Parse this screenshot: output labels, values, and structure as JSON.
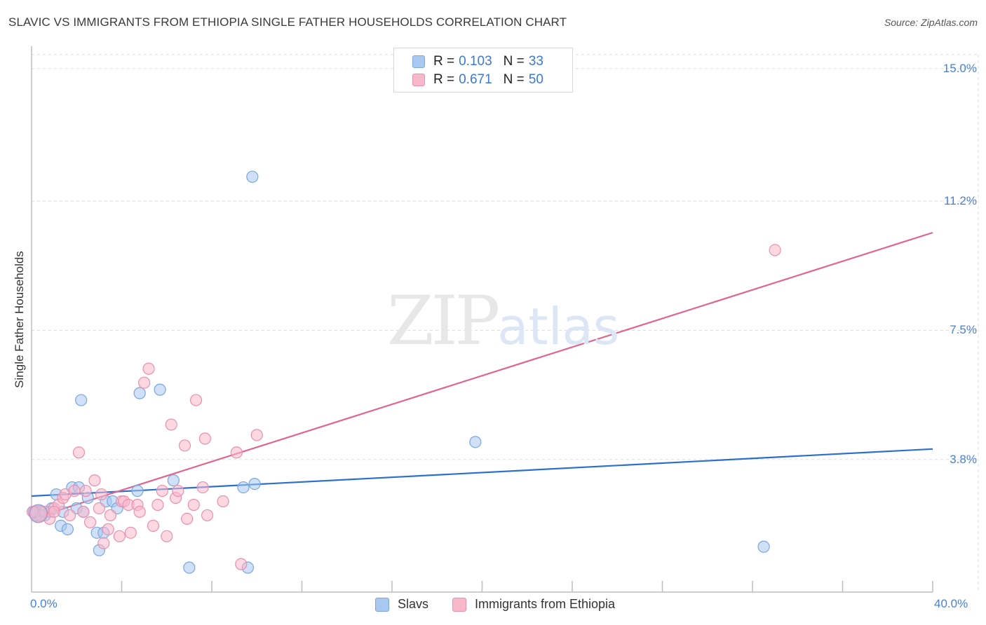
{
  "header": {
    "title": "SLAVIC VS IMMIGRANTS FROM ETHIOPIA SINGLE FATHER HOUSEHOLDS CORRELATION CHART",
    "source": "Source: ZipAtlas.com"
  },
  "watermark": {
    "zip": "ZIP",
    "atlas": "atlas"
  },
  "legend": {
    "rows": [
      {
        "r_label": "R =",
        "r_value": "0.103",
        "n_label": "N =",
        "n_value": "33"
      },
      {
        "r_label": "R =",
        "r_value": "0.671",
        "n_label": "N =",
        "n_value": "50"
      }
    ]
  },
  "colors": {
    "slavs_fill": "#a9c8f0",
    "slavs_stroke": "#7aa6de",
    "slavs_line": "#2c6fcf",
    "ethiopia_fill": "#f7b8cb",
    "ethiopia_stroke": "#ec8fae",
    "ethiopia_line": "#e06490",
    "grid": "#dcdcdc",
    "tick_label": "#4a7fd8"
  },
  "chart_data": {
    "type": "scatter",
    "title": "SLAVIC VS IMMIGRANTS FROM ETHIOPIA SINGLE FATHER HOUSEHOLDS CORRELATION CHART",
    "xlabel": "",
    "ylabel": "Single Father Households",
    "xlim": [
      0,
      40
    ],
    "ylim": [
      0,
      15.4
    ],
    "x_tick_labels": [
      "0.0%",
      "40.0%"
    ],
    "y_ticks": [
      3.8,
      7.5,
      11.2,
      15.0
    ],
    "y_tick_labels": [
      "3.8%",
      "7.5%",
      "11.2%",
      "15.0%"
    ],
    "legend_position": "top-center",
    "series": [
      {
        "name": "Slavs",
        "r": 0.103,
        "n": 33,
        "trend": {
          "x": [
            0,
            40
          ],
          "y": [
            2.75,
            4.1
          ]
        },
        "points": [
          [
            0.2,
            2.2
          ],
          [
            0.4,
            2.3
          ],
          [
            0.6,
            2.2
          ],
          [
            0.8,
            2.3
          ],
          [
            0.9,
            2.4
          ],
          [
            1.1,
            2.8
          ],
          [
            1.3,
            1.9
          ],
          [
            1.4,
            2.3
          ],
          [
            1.6,
            1.8
          ],
          [
            1.8,
            3.0
          ],
          [
            2.0,
            2.4
          ],
          [
            2.1,
            3.0
          ],
          [
            2.2,
            5.5
          ],
          [
            2.3,
            2.3
          ],
          [
            2.5,
            2.7
          ],
          [
            2.9,
            1.7
          ],
          [
            3.0,
            1.2
          ],
          [
            3.2,
            1.7
          ],
          [
            3.3,
            2.6
          ],
          [
            3.6,
            2.6
          ],
          [
            3.8,
            2.4
          ],
          [
            4.7,
            2.9
          ],
          [
            4.8,
            5.7
          ],
          [
            5.7,
            5.8
          ],
          [
            6.3,
            3.2
          ],
          [
            7.0,
            0.7
          ],
          [
            9.4,
            3.0
          ],
          [
            9.6,
            0.7
          ],
          [
            9.8,
            11.9
          ],
          [
            9.9,
            3.1
          ],
          [
            19.7,
            4.3
          ],
          [
            32.5,
            1.3
          ],
          [
            0.1,
            2.3
          ]
        ]
      },
      {
        "name": "Immigrants from Ethiopia",
        "r": 0.671,
        "n": 50,
        "trend": {
          "x": [
            0,
            40
          ],
          "y": [
            2.1,
            10.3
          ]
        },
        "points": [
          [
            0.2,
            2.3
          ],
          [
            0.4,
            2.2
          ],
          [
            0.6,
            2.3
          ],
          [
            0.8,
            2.1
          ],
          [
            1.0,
            2.4
          ],
          [
            1.2,
            2.5
          ],
          [
            1.4,
            2.7
          ],
          [
            1.5,
            2.8
          ],
          [
            1.7,
            2.2
          ],
          [
            1.9,
            2.9
          ],
          [
            2.1,
            4.0
          ],
          [
            2.3,
            2.3
          ],
          [
            2.4,
            2.9
          ],
          [
            2.6,
            2.0
          ],
          [
            2.8,
            3.2
          ],
          [
            3.1,
            2.8
          ],
          [
            3.2,
            1.4
          ],
          [
            3.4,
            1.8
          ],
          [
            3.5,
            2.2
          ],
          [
            3.9,
            1.6
          ],
          [
            4.0,
            2.6
          ],
          [
            4.1,
            2.6
          ],
          [
            4.3,
            2.5
          ],
          [
            4.4,
            1.7
          ],
          [
            4.7,
            2.5
          ],
          [
            4.8,
            2.3
          ],
          [
            5.0,
            6.0
          ],
          [
            5.2,
            6.4
          ],
          [
            5.4,
            1.9
          ],
          [
            5.6,
            2.5
          ],
          [
            5.8,
            2.9
          ],
          [
            6.0,
            1.6
          ],
          [
            6.2,
            4.8
          ],
          [
            6.4,
            2.7
          ],
          [
            6.5,
            2.9
          ],
          [
            6.8,
            4.2
          ],
          [
            6.9,
            2.1
          ],
          [
            7.2,
            2.5
          ],
          [
            7.3,
            5.5
          ],
          [
            7.6,
            3.0
          ],
          [
            7.7,
            4.4
          ],
          [
            7.8,
            2.2
          ],
          [
            8.5,
            2.6
          ],
          [
            9.1,
            4.0
          ],
          [
            9.3,
            0.8
          ],
          [
            10.0,
            4.5
          ],
          [
            33.0,
            9.8
          ],
          [
            0.05,
            2.3
          ],
          [
            1.0,
            2.3
          ],
          [
            3.0,
            2.4
          ]
        ]
      }
    ]
  },
  "bottom_legend": {
    "items": [
      {
        "label": "Slavs"
      },
      {
        "label": "Immigrants from Ethiopia"
      }
    ]
  }
}
